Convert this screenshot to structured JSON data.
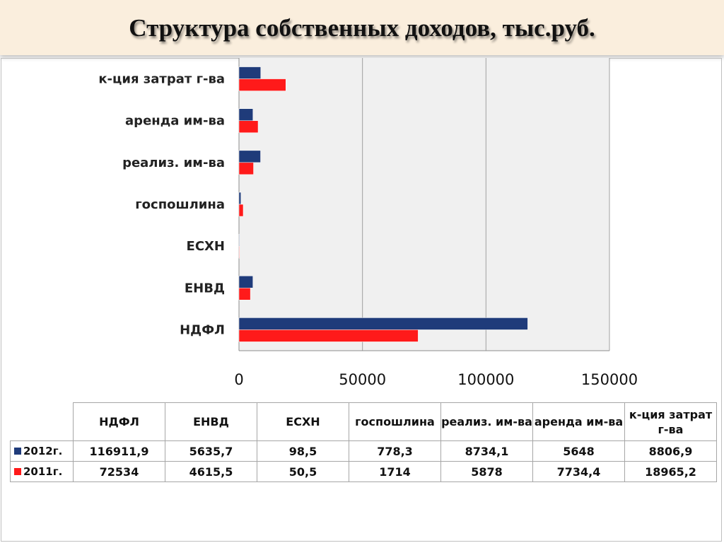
{
  "title": "Структура собственных доходов, тыс.руб.",
  "chart_data": {
    "type": "bar",
    "orientation": "horizontal",
    "title": "Структура собственных доходов, тыс.руб.",
    "categories": [
      "НДФЛ",
      "ЕНВД",
      "ЕСХН",
      "госпошлина",
      "реализ. им-ва",
      "аренда им-ва",
      "к-ция затрат г-ва"
    ],
    "series": [
      {
        "name": "2012г.",
        "color": "#1f3b7a",
        "values": [
          116911.9,
          5635.7,
          98.5,
          778.3,
          8734.1,
          5648,
          8806.9
        ]
      },
      {
        "name": "2011г.",
        "color": "#ff1a1a",
        "values": [
          72534,
          4615.5,
          50.5,
          1714,
          5878,
          7734.4,
          18965.2
        ]
      }
    ],
    "xlim": [
      0,
      150000
    ],
    "xticks": [
      0,
      50000,
      100000,
      150000
    ],
    "grid": true,
    "legend": "data-table"
  },
  "table": {
    "headers": [
      "НДФЛ",
      "ЕНВД",
      "ЕСХН",
      "госпошлина",
      "реализ. им-ва",
      "аренда им-ва",
      "к-ция затрат г-ва"
    ],
    "rows": [
      {
        "label": "2012г.",
        "values": [
          "116911,9",
          "5635,7",
          "98,5",
          "778,3",
          "8734,1",
          "5648",
          "8806,9"
        ]
      },
      {
        "label": "2011г.",
        "values": [
          "72534",
          "4615,5",
          "50,5",
          "1714",
          "5878",
          "7734,4",
          "18965,2"
        ]
      }
    ]
  }
}
